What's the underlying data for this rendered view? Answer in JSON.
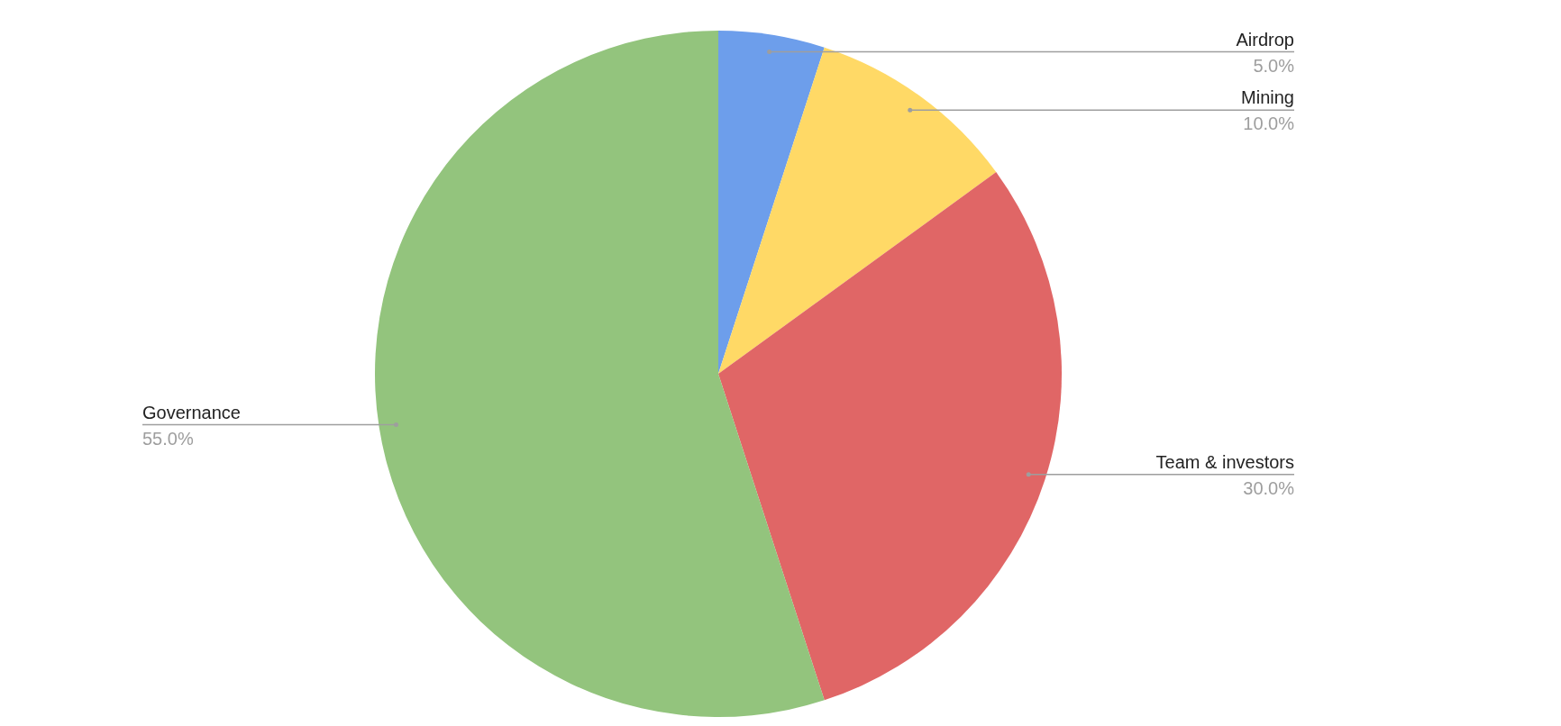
{
  "chart_data": {
    "type": "pie",
    "categories": [
      "Airdrop",
      "Mining",
      "Team & investors",
      "Governance"
    ],
    "values": [
      5,
      10,
      30,
      55
    ],
    "colors": [
      "#6d9eeb",
      "#ffd966",
      "#e06666",
      "#93c47d"
    ],
    "value_labels": [
      "5.0%",
      "10.0%",
      "30.0%",
      "55.0%"
    ]
  }
}
